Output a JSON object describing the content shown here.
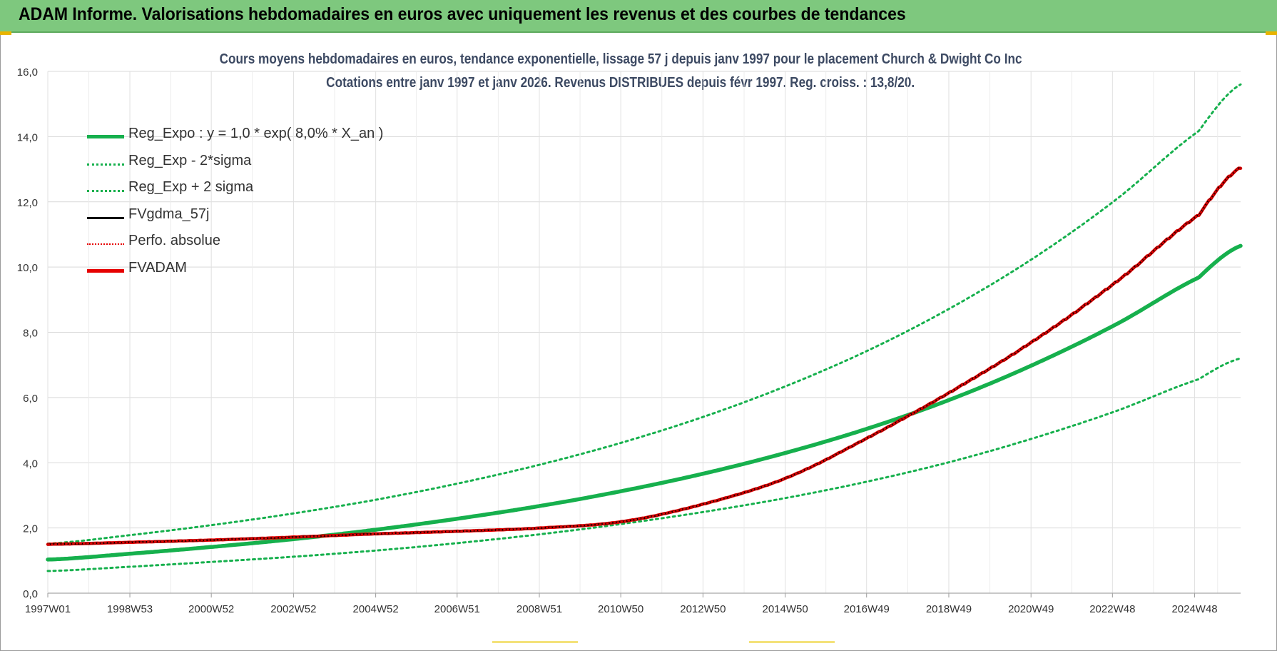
{
  "header": {
    "title": "ADAM Informe. Valorisations hebdomadaires en euros avec uniquement les revenus et des courbes de tendances"
  },
  "chart_data": {
    "type": "line",
    "title_line1": "Cours moyens hebdomadaires en euros, tendance exponentielle, lissage 57 j depuis janv 1997 pour le placement Church & Dwight Co Inc",
    "title_line2": "Cotations entre janv 1997 et janv 2026. Revenus DISTRIBUES depuis févr 1997. Reg. croiss. : 13,8/20.",
    "x_tick_labels": [
      "1997W01",
      "1998W53",
      "2000W52",
      "2002W52",
      "2004W52",
      "2006W51",
      "2008W51",
      "2010W50",
      "2012W50",
      "2014W50",
      "2016W49",
      "2018W49",
      "2020W49",
      "2022W48",
      "2024W48"
    ],
    "y_tick_labels": [
      "0,0",
      "2,0",
      "4,0",
      "6,0",
      "8,0",
      "10,0",
      "12,0",
      "14,0",
      "16,0"
    ],
    "ylim": [
      0,
      16
    ],
    "xlim": [
      "1997W01",
      "2026W02"
    ],
    "grid": true,
    "legend_position": "top-left",
    "x": [
      "1997W01",
      "1999W01",
      "2001W01",
      "2003W01",
      "2005W01",
      "2007W01",
      "2009W01",
      "2011W01",
      "2013W01",
      "2015W01",
      "2017W01",
      "2019W01",
      "2021W01",
      "2023W01",
      "2025W01",
      "2026W02"
    ],
    "series": [
      {
        "name": "Reg_Expo : y = 1,0 * exp( 8,0% *  X_an )",
        "style": "solid",
        "color": "#16b04d",
        "values": [
          1.03,
          1.21,
          1.42,
          1.66,
          1.95,
          2.29,
          2.68,
          3.14,
          3.68,
          4.32,
          5.07,
          5.96,
          7.02,
          8.25,
          9.68,
          10.65
        ]
      },
      {
        "name": "Reg_Exp - 2*sigma",
        "style": "dotted",
        "color": "#16b04d",
        "values": [
          0.68,
          0.81,
          0.96,
          1.12,
          1.31,
          1.54,
          1.81,
          2.13,
          2.5,
          2.93,
          3.44,
          4.04,
          4.76,
          5.59,
          6.56,
          7.2
        ]
      },
      {
        "name": "Reg_Exp + 2 sigma",
        "style": "dotted",
        "color": "#16b04d",
        "values": [
          1.52,
          1.78,
          2.09,
          2.45,
          2.87,
          3.37,
          3.95,
          4.63,
          5.43,
          6.37,
          7.47,
          8.77,
          10.29,
          12.08,
          14.17,
          15.6
        ]
      },
      {
        "name": "FVgdma_57j",
        "style": "solid",
        "color": "#000000",
        "values": [
          1.5,
          1.56,
          1.63,
          1.72,
          1.82,
          1.9,
          2.0,
          2.2,
          2.75,
          3.55,
          4.8,
          6.2,
          7.75,
          9.55,
          11.6,
          13.05
        ]
      },
      {
        "name": "Perfo. absolue",
        "style": "dotted",
        "color": "#e60000",
        "values": [
          1.5,
          1.56,
          1.63,
          1.72,
          1.82,
          1.9,
          2.0,
          2.2,
          2.75,
          3.55,
          4.8,
          6.2,
          7.75,
          9.55,
          11.6,
          13.05
        ]
      },
      {
        "name": "FVADAM",
        "style": "solid",
        "color": "#e60000",
        "values": [
          1.5,
          1.56,
          1.63,
          1.72,
          1.82,
          1.9,
          2.0,
          2.2,
          2.75,
          3.55,
          4.8,
          6.2,
          7.75,
          9.55,
          11.6,
          13.05
        ]
      }
    ]
  }
}
